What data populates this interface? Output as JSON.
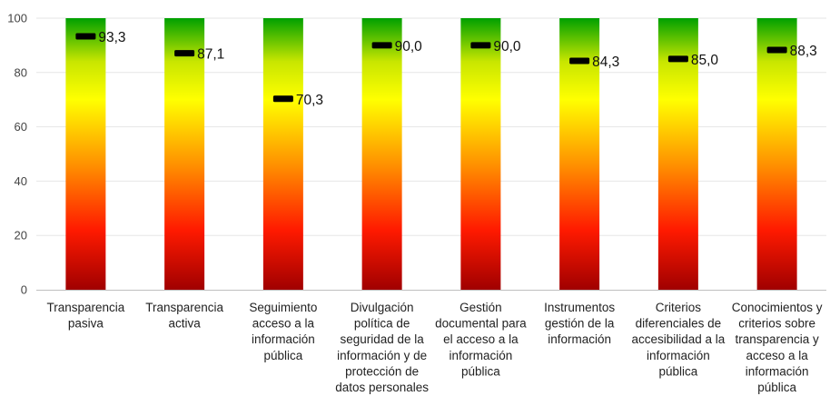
{
  "chart_data": {
    "type": "bar",
    "title": "",
    "xlabel": "",
    "ylabel": "",
    "ylim": [
      0,
      100
    ],
    "yticks": [
      0,
      20,
      40,
      60,
      80,
      100
    ],
    "grid": true,
    "legend": "none",
    "bar_fill": "gradient dark red (0) to red, orange, yellow, green (100); black marker at value",
    "colors": {
      "gradient": [
        "#a00000",
        "#ff1a00",
        "#ff8c00",
        "#ffff00",
        "#00a000"
      ],
      "marker": "#000000",
      "gridline": "#e6e6e6",
      "axis": "#bfbfbf"
    },
    "categories": [
      "Transparencia pasiva",
      "Transparencia activa",
      "Seguimiento acceso a la información pública",
      "Divulgación política de seguridad de la información y de protección de datos personales",
      "Gestión documental para el acceso a la información pública",
      "Instrumentos gestión de la información",
      "Criterios diferenciales de accesibilidad a la información pública",
      "Conocimientos y criterios sobre transparencia y acceso a la información pública"
    ],
    "category_lines": [
      [
        "Transparencia",
        "pasiva"
      ],
      [
        "Transparencia",
        "activa"
      ],
      [
        "Seguimiento",
        "acceso a la",
        "información",
        "pública"
      ],
      [
        "Divulgación",
        "política de",
        "seguridad de la",
        "información y de",
        "protección de",
        "datos personales"
      ],
      [
        "Gestión",
        "documental para",
        "el acceso a la",
        "información",
        "pública"
      ],
      [
        "Instrumentos",
        "gestión de la",
        "información"
      ],
      [
        "Criterios",
        "diferenciales de",
        "accesibilidad a la",
        "información",
        "pública"
      ],
      [
        "Conocimientos y",
        "criterios sobre",
        "transparencia y",
        "acceso a la",
        "información",
        "pública"
      ]
    ],
    "values": [
      93.3,
      87.1,
      70.3,
      90.0,
      90.0,
      84.3,
      85.0,
      88.3
    ],
    "value_labels": [
      "93,3",
      "87,1",
      "70,3",
      "90,0",
      "90,0",
      "84,3",
      "85,0",
      "88,3"
    ]
  }
}
